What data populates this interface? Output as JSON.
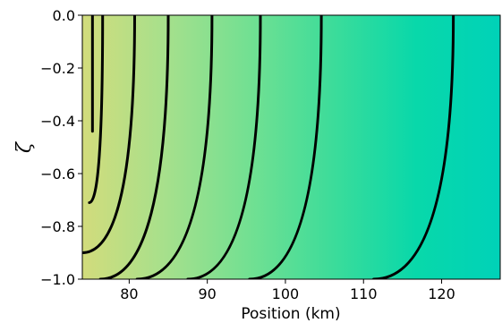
{
  "chart_data": {
    "type": "heatmap",
    "title": "",
    "xlabel": "Position (km)",
    "ylabel": "ζ",
    "xlim": [
      74,
      127.5
    ],
    "ylim": [
      -1.0,
      0.0
    ],
    "xticks": [
      80,
      90,
      100,
      110,
      120
    ],
    "xtick_labels": [
      "80",
      "90",
      "100",
      "110",
      "120"
    ],
    "yticks": [
      0.0,
      -0.2,
      -0.4,
      -0.6,
      -0.8,
      -1.0
    ],
    "ytick_labels": [
      "0.0",
      "−0.2",
      "−0.4",
      "−0.6",
      "−0.8",
      "−1.0"
    ],
    "grid": false,
    "legend": "none",
    "colormap_stops": [
      "#d2dc7c",
      "#a6e08c",
      "#72e092",
      "#3cdc9a",
      "#08d8aa",
      "#00d2b8"
    ],
    "field_x_range": [
      74,
      127.5
    ],
    "contours": [
      {
        "x_top": 75.3,
        "x_bottom": 75.3,
        "zeta_min": -0.44
      },
      {
        "x_top": 76.6,
        "x_bottom": 74.9,
        "zeta_min": -0.71
      },
      {
        "x_top": 80.7,
        "x_bottom": 74.0,
        "zeta_min": -0.9
      },
      {
        "x_top": 85.0,
        "x_bottom": 76.3,
        "zeta_min": -1.0
      },
      {
        "x_top": 90.6,
        "x_bottom": 81.0,
        "zeta_min": -1.0
      },
      {
        "x_top": 96.8,
        "x_bottom": 87.5,
        "zeta_min": -1.0
      },
      {
        "x_top": 104.6,
        "x_bottom": 95.4,
        "zeta_min": -1.0
      },
      {
        "x_top": 121.5,
        "x_bottom": 111.3,
        "zeta_min": -1.0
      }
    ]
  }
}
